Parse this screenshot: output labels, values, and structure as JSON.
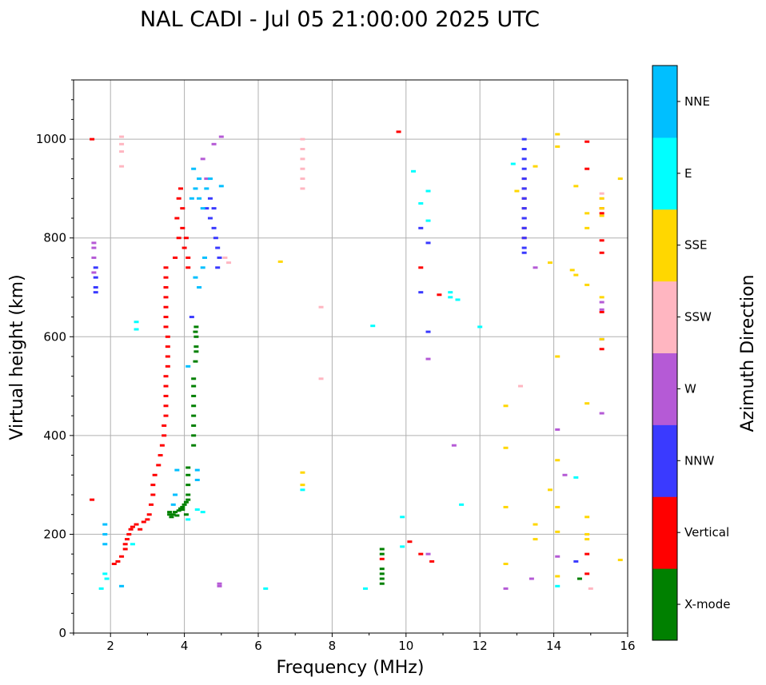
{
  "chart_data": {
    "type": "scatter",
    "title": "NAL CADI - Jul 05 21:00:00 2025 UTC",
    "xlabel": "Frequency (MHz)",
    "ylabel": "Virtual height (km)",
    "xlim": [
      1,
      16
    ],
    "ylim": [
      0,
      1120
    ],
    "grid": true,
    "x_ticks": [
      2,
      4,
      6,
      8,
      10,
      12,
      14,
      16
    ],
    "y_ticks": [
      0,
      200,
      400,
      600,
      800,
      1000
    ],
    "colorbar": {
      "label": "Azimuth Direction",
      "categories": [
        {
          "name": "X-mode",
          "color": "#008000"
        },
        {
          "name": "Vertical",
          "color": "#ff0000"
        },
        {
          "name": "NNW",
          "color": "#3a3aff"
        },
        {
          "name": "W",
          "color": "#b55ad6"
        },
        {
          "name": "SSW",
          "color": "#ffb6c1"
        },
        {
          "name": "SSE",
          "color": "#ffd700"
        },
        {
          "name": "E",
          "color": "#00ffff"
        },
        {
          "name": "NNE",
          "color": "#00bfff"
        }
      ]
    },
    "series": [
      {
        "name": "X-mode",
        "points": [
          [
            3.6,
            240
          ],
          [
            3.6,
            245
          ],
          [
            3.65,
            235
          ],
          [
            3.7,
            240
          ],
          [
            3.75,
            245
          ],
          [
            3.8,
            238
          ],
          [
            3.85,
            248
          ],
          [
            3.9,
            252
          ],
          [
            3.95,
            255
          ],
          [
            4.0,
            260
          ],
          [
            4.05,
            265
          ],
          [
            4.1,
            270
          ],
          [
            4.1,
            280
          ],
          [
            4.1,
            300
          ],
          [
            4.1,
            320
          ],
          [
            4.1,
            335
          ],
          [
            4.05,
            240
          ],
          [
            3.95,
            250
          ],
          [
            4.25,
            380
          ],
          [
            4.25,
            400
          ],
          [
            4.25,
            420
          ],
          [
            4.25,
            440
          ],
          [
            4.25,
            460
          ],
          [
            4.25,
            480
          ],
          [
            4.25,
            500
          ],
          [
            4.25,
            515
          ],
          [
            4.3,
            550
          ],
          [
            4.32,
            570
          ],
          [
            4.32,
            580
          ],
          [
            4.32,
            600
          ],
          [
            4.32,
            620
          ],
          [
            4.3,
            610
          ],
          [
            9.35,
            100
          ],
          [
            9.35,
            110
          ],
          [
            9.35,
            120
          ],
          [
            9.35,
            130
          ],
          [
            9.35,
            160
          ],
          [
            9.35,
            170
          ],
          [
            14.7,
            110
          ]
        ]
      },
      {
        "name": "Vertical",
        "points": [
          [
            1.5,
            1000
          ],
          [
            1.5,
            270
          ],
          [
            2.1,
            140
          ],
          [
            2.2,
            145
          ],
          [
            2.3,
            155
          ],
          [
            2.4,
            170
          ],
          [
            2.4,
            180
          ],
          [
            2.45,
            190
          ],
          [
            2.5,
            200
          ],
          [
            2.55,
            210
          ],
          [
            2.6,
            215
          ],
          [
            2.7,
            220
          ],
          [
            2.8,
            210
          ],
          [
            2.9,
            225
          ],
          [
            3.0,
            230
          ],
          [
            3.05,
            240
          ],
          [
            3.1,
            260
          ],
          [
            3.15,
            280
          ],
          [
            3.15,
            300
          ],
          [
            3.2,
            320
          ],
          [
            3.3,
            340
          ],
          [
            3.35,
            360
          ],
          [
            3.4,
            380
          ],
          [
            3.45,
            400
          ],
          [
            3.45,
            420
          ],
          [
            3.5,
            440
          ],
          [
            3.5,
            460
          ],
          [
            3.5,
            480
          ],
          [
            3.5,
            500
          ],
          [
            3.5,
            520
          ],
          [
            3.55,
            540
          ],
          [
            3.55,
            560
          ],
          [
            3.55,
            580
          ],
          [
            3.55,
            600
          ],
          [
            3.5,
            620
          ],
          [
            3.5,
            640
          ],
          [
            3.5,
            660
          ],
          [
            3.5,
            680
          ],
          [
            3.5,
            700
          ],
          [
            3.5,
            720
          ],
          [
            3.5,
            740
          ],
          [
            3.75,
            760
          ],
          [
            3.85,
            800
          ],
          [
            3.95,
            820
          ],
          [
            4.0,
            780
          ],
          [
            4.05,
            800
          ],
          [
            4.1,
            760
          ],
          [
            4.1,
            740
          ],
          [
            3.85,
            880
          ],
          [
            3.95,
            860
          ],
          [
            3.8,
            840
          ],
          [
            3.9,
            900
          ],
          [
            9.8,
            1015
          ],
          [
            10.1,
            185
          ],
          [
            10.4,
            740
          ],
          [
            10.4,
            160
          ],
          [
            10.7,
            145
          ],
          [
            10.9,
            685
          ],
          [
            13.2,
            800
          ],
          [
            13.2,
            820
          ],
          [
            13.2,
            840
          ],
          [
            13.2,
            860
          ],
          [
            13.2,
            880
          ],
          [
            13.2,
            900
          ],
          [
            13.2,
            920
          ],
          [
            14.9,
            995
          ],
          [
            14.9,
            940
          ],
          [
            14.9,
            120
          ],
          [
            14.9,
            160
          ],
          [
            15.3,
            860
          ],
          [
            15.3,
            850
          ],
          [
            15.3,
            795
          ],
          [
            15.3,
            770
          ],
          [
            15.3,
            650
          ],
          [
            15.3,
            575
          ],
          [
            9.35,
            150
          ]
        ]
      },
      {
        "name": "NNW",
        "points": [
          [
            1.6,
            690
          ],
          [
            1.6,
            700
          ],
          [
            1.6,
            720
          ],
          [
            1.6,
            740
          ],
          [
            4.6,
            860
          ],
          [
            4.7,
            840
          ],
          [
            4.8,
            820
          ],
          [
            4.85,
            800
          ],
          [
            4.9,
            780
          ],
          [
            4.95,
            760
          ],
          [
            4.9,
            740
          ],
          [
            4.7,
            880
          ],
          [
            4.8,
            860
          ],
          [
            13.2,
            980
          ],
          [
            13.2,
            1000
          ],
          [
            13.2,
            960
          ],
          [
            13.2,
            940
          ],
          [
            13.2,
            920
          ],
          [
            13.2,
            900
          ],
          [
            13.2,
            880
          ],
          [
            13.2,
            860
          ],
          [
            13.2,
            840
          ],
          [
            13.2,
            820
          ],
          [
            13.2,
            800
          ],
          [
            13.2,
            780
          ],
          [
            13.2,
            770
          ],
          [
            10.4,
            690
          ],
          [
            10.4,
            820
          ],
          [
            10.6,
            790
          ],
          [
            10.6,
            610
          ],
          [
            15.3,
            595
          ],
          [
            14.6,
            145
          ],
          [
            4.2,
            640
          ]
        ]
      },
      {
        "name": "W",
        "points": [
          [
            1.55,
            730
          ],
          [
            1.55,
            760
          ],
          [
            1.55,
            780
          ],
          [
            1.55,
            790
          ],
          [
            4.95,
            95
          ],
          [
            4.95,
            100
          ],
          [
            4.6,
            920
          ],
          [
            4.5,
            960
          ],
          [
            4.8,
            990
          ],
          [
            5.0,
            1005
          ],
          [
            13.5,
            740
          ],
          [
            14.3,
            320
          ],
          [
            14.1,
            155
          ],
          [
            15.3,
            445
          ],
          [
            15.3,
            670
          ],
          [
            15.3,
            655
          ],
          [
            12.7,
            90
          ],
          [
            10.6,
            555
          ],
          [
            10.6,
            160
          ],
          [
            11.3,
            380
          ],
          [
            14.1,
            412
          ],
          [
            13.4,
            110
          ]
        ]
      },
      {
        "name": "SSW",
        "points": [
          [
            2.3,
            975
          ],
          [
            2.3,
            990
          ],
          [
            2.3,
            1005
          ],
          [
            2.3,
            945
          ],
          [
            7.2,
            900
          ],
          [
            7.2,
            920
          ],
          [
            7.2,
            940
          ],
          [
            7.2,
            960
          ],
          [
            7.2,
            980
          ],
          [
            7.2,
            1000
          ],
          [
            7.7,
            515
          ],
          [
            7.7,
            660
          ],
          [
            5.1,
            760
          ],
          [
            5.2,
            750
          ],
          [
            13.1,
            500
          ],
          [
            15.3,
            880
          ],
          [
            15.3,
            890
          ],
          [
            15.0,
            90
          ]
        ]
      },
      {
        "name": "SSE",
        "points": [
          [
            7.2,
            300
          ],
          [
            7.2,
            325
          ],
          [
            6.6,
            752
          ],
          [
            13.5,
            945
          ],
          [
            13.0,
            895
          ],
          [
            12.7,
            460
          ],
          [
            12.7,
            375
          ],
          [
            12.7,
            255
          ],
          [
            12.7,
            140
          ],
          [
            13.5,
            190
          ],
          [
            13.5,
            220
          ],
          [
            14.1,
            1010
          ],
          [
            14.1,
            985
          ],
          [
            14.1,
            560
          ],
          [
            14.1,
            350
          ],
          [
            14.1,
            255
          ],
          [
            14.1,
            205
          ],
          [
            14.1,
            115
          ],
          [
            14.5,
            735
          ],
          [
            14.6,
            725
          ],
          [
            14.9,
            705
          ],
          [
            14.9,
            820
          ],
          [
            14.9,
            850
          ],
          [
            14.9,
            465
          ],
          [
            14.9,
            235
          ],
          [
            14.9,
            200
          ],
          [
            14.9,
            190
          ],
          [
            15.3,
            880
          ],
          [
            15.3,
            860
          ],
          [
            15.3,
            845
          ],
          [
            15.3,
            680
          ],
          [
            15.3,
            595
          ],
          [
            15.8,
            920
          ],
          [
            15.8,
            148
          ],
          [
            14.6,
            905
          ],
          [
            13.9,
            290
          ],
          [
            13.9,
            750
          ]
        ]
      },
      {
        "name": "E",
        "points": [
          [
            1.85,
            120
          ],
          [
            1.9,
            110
          ],
          [
            1.75,
            90
          ],
          [
            2.6,
            180
          ],
          [
            2.7,
            615
          ],
          [
            2.7,
            630
          ],
          [
            4.1,
            230
          ],
          [
            4.35,
            250
          ],
          [
            4.5,
            245
          ],
          [
            6.2,
            90
          ],
          [
            8.9,
            90
          ],
          [
            9.1,
            622
          ],
          [
            9.9,
            175
          ],
          [
            9.9,
            235
          ],
          [
            10.2,
            935
          ],
          [
            10.4,
            870
          ],
          [
            10.6,
            895
          ],
          [
            10.6,
            835
          ],
          [
            11.2,
            680
          ],
          [
            11.4,
            675
          ],
          [
            11.2,
            690
          ],
          [
            12.0,
            620
          ],
          [
            11.5,
            260
          ],
          [
            12.9,
            950
          ],
          [
            14.1,
            95
          ],
          [
            14.6,
            315
          ],
          [
            7.2,
            290
          ]
        ]
      },
      {
        "name": "NNE",
        "points": [
          [
            1.85,
            180
          ],
          [
            1.85,
            200
          ],
          [
            1.85,
            220
          ],
          [
            4.2,
            880
          ],
          [
            4.3,
            900
          ],
          [
            4.4,
            920
          ],
          [
            4.25,
            940
          ],
          [
            4.4,
            880
          ],
          [
            4.5,
            860
          ],
          [
            4.6,
            900
          ],
          [
            4.7,
            920
          ],
          [
            4.3,
            720
          ],
          [
            4.4,
            700
          ],
          [
            4.5,
            740
          ],
          [
            4.55,
            760
          ],
          [
            4.35,
            330
          ],
          [
            4.35,
            310
          ],
          [
            4.1,
            540
          ],
          [
            3.8,
            330
          ],
          [
            3.75,
            280
          ],
          [
            3.7,
            260
          ],
          [
            2.3,
            95
          ],
          [
            5.0,
            905
          ]
        ]
      }
    ]
  }
}
